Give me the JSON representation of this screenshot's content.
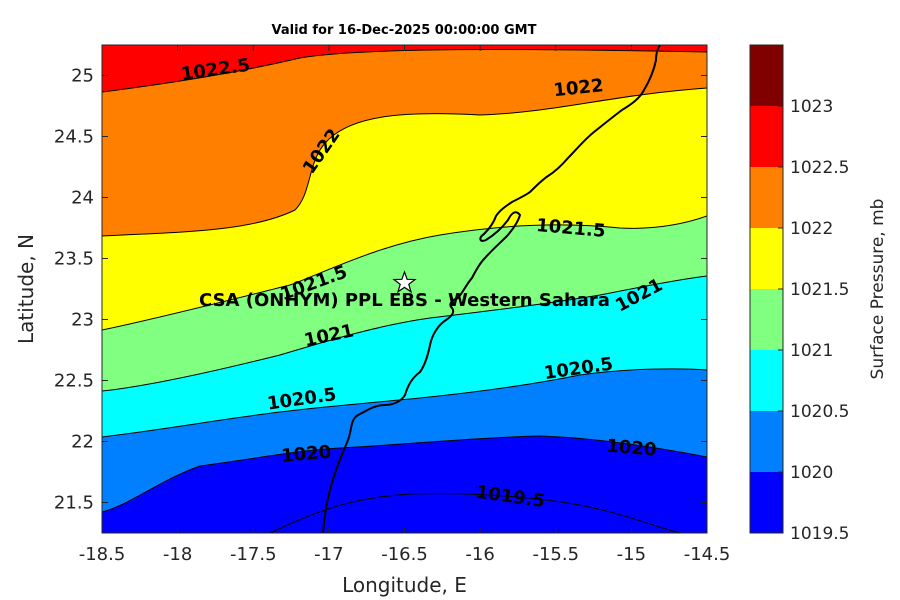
{
  "title": "Valid for 16-Dec-2025 00:00:00 GMT",
  "axes": {
    "xlabel": "Longitude, E",
    "ylabel": "Latitude, N",
    "xlim": [
      -18.5,
      -14.5
    ],
    "ylim": [
      21.25,
      25.25
    ],
    "xticks": [
      "-18.5",
      "-18",
      "-17.5",
      "-17",
      "-16.5",
      "-16",
      "-15.5",
      "-15",
      "-14.5"
    ],
    "yticks": [
      "21.5",
      "22",
      "22.5",
      "23",
      "23.5",
      "24",
      "24.5",
      "25"
    ]
  },
  "colorbar": {
    "label": "Surface Pressure, mb",
    "ticks": [
      "1019.5",
      "1020",
      "1020.5",
      "1021",
      "1021.5",
      "1022",
      "1022.5",
      "1023"
    ],
    "colors": [
      "#0000ff",
      "#0080ff",
      "#00ffff",
      "#80ff80",
      "#ffff00",
      "#ff8000",
      "#ff0000",
      "#800000"
    ]
  },
  "contour_labels": [
    {
      "text": "1022.5",
      "lon": -17.75,
      "lat": 25.05
    },
    {
      "text": "1022",
      "lon": -15.35,
      "lat": 24.9
    },
    {
      "text": "1022",
      "lon": -17.05,
      "lat": 24.38
    },
    {
      "text": "1021.5",
      "lon": -15.4,
      "lat": 23.75
    },
    {
      "text": "1021.5",
      "lon": -17.1,
      "lat": 23.3
    },
    {
      "text": "1021",
      "lon": -17.0,
      "lat": 22.87
    },
    {
      "text": "1021",
      "lon": -14.95,
      "lat": 23.2
    },
    {
      "text": "1020.5",
      "lon": -15.35,
      "lat": 22.6
    },
    {
      "text": "1020.5",
      "lon": -17.18,
      "lat": 22.35
    },
    {
      "text": "1020",
      "lon": -17.15,
      "lat": 21.9
    },
    {
      "text": "1020",
      "lon": -15.0,
      "lat": 21.95
    },
    {
      "text": "1019.5",
      "lon": -15.8,
      "lat": 21.55
    }
  ],
  "site": {
    "name": "CSA (ONHYM) PPL EBS - Western Sahara",
    "lon": -16.5,
    "lat": 23.3,
    "marker": "star-icon"
  }
}
